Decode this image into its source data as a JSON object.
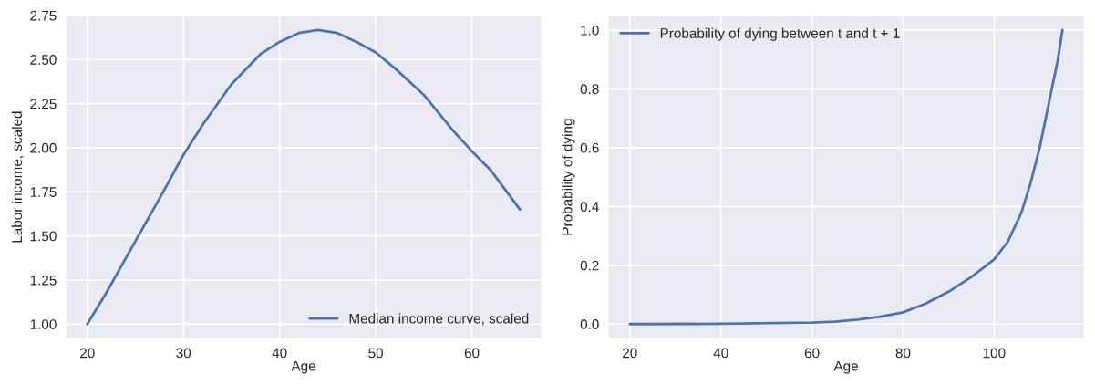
{
  "chart_data": [
    {
      "type": "line",
      "xlabel": "Age",
      "ylabel": "Labor income, scaled",
      "x": [
        20,
        22,
        25,
        28,
        30,
        32,
        35,
        38,
        40,
        42,
        44,
        46,
        48,
        50,
        52,
        55,
        58,
        60,
        62,
        65
      ],
      "series": [
        {
          "name": "Median income curve, scaled",
          "color": "#4c72b0",
          "values": [
            1.0,
            1.18,
            1.47,
            1.76,
            1.96,
            2.13,
            2.36,
            2.53,
            2.6,
            2.65,
            2.667,
            2.65,
            2.6,
            2.54,
            2.45,
            2.3,
            2.1,
            1.98,
            1.87,
            1.65
          ]
        }
      ],
      "xlim": [
        17.75,
        67.25
      ],
      "xticks": [
        20,
        30,
        40,
        50,
        60
      ],
      "ylim": [
        0.917,
        2.75
      ],
      "yticks": [
        {
          "value": 1.0,
          "label": "1.00"
        },
        {
          "value": 1.25,
          "label": "1.25"
        },
        {
          "value": 1.5,
          "label": "1.50"
        },
        {
          "value": 1.75,
          "label": "1.75"
        },
        {
          "value": 2.0,
          "label": "2.00"
        },
        {
          "value": 2.25,
          "label": "2.25"
        },
        {
          "value": 2.5,
          "label": "2.50"
        },
        {
          "value": 2.75,
          "label": "2.75"
        }
      ],
      "grid": true,
      "legend": "lower right",
      "line_style": "solid",
      "marker": "none"
    },
    {
      "type": "line",
      "xlabel": "Age",
      "ylabel": "Probability of dying",
      "x": [
        20,
        40,
        60,
        65,
        70,
        75,
        80,
        85,
        90,
        95,
        100,
        103,
        106,
        108,
        110,
        112,
        114,
        115
      ],
      "series": [
        {
          "name": "Probability of dying between t and t + 1",
          "color": "#4c72b0",
          "values": [
            0,
            0.001,
            0.005,
            0.008,
            0.015,
            0.025,
            0.04,
            0.07,
            0.11,
            0.16,
            0.22,
            0.28,
            0.38,
            0.48,
            0.6,
            0.75,
            0.9,
            1.0
          ]
        }
      ],
      "xlim": [
        15.25,
        119.75
      ],
      "xticks": [
        20,
        40,
        60,
        80,
        100
      ],
      "ylim": [
        -0.05,
        1.05
      ],
      "yticks": [
        {
          "value": 0,
          "label": "0.0"
        },
        {
          "value": 0.2,
          "label": "0.2"
        },
        {
          "value": 0.4,
          "label": "0.4"
        },
        {
          "value": 0.6,
          "label": "0.6"
        },
        {
          "value": 0.8,
          "label": "0.8"
        },
        {
          "value": 1.0,
          "label": "1.0"
        }
      ],
      "grid": true,
      "legend": "upper left",
      "line_style": "solid",
      "marker": "none"
    }
  ]
}
